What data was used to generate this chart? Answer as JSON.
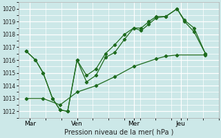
{
  "xlabel": "Pression niveau de la mer( hPa )",
  "bg_color": "#cce8e8",
  "grid_color": "#ffffff",
  "line_color": "#1e6b1e",
  "ylim": [
    1011.5,
    1020.5
  ],
  "yticks": [
    1012,
    1013,
    1014,
    1015,
    1016,
    1017,
    1018,
    1019,
    1020
  ],
  "day_labels": [
    "Mar",
    "Ven",
    "Mer",
    "Jeu"
  ],
  "day_positions": [
    0.5,
    3.0,
    6.0,
    8.5
  ],
  "xlim": [
    -0.1,
    10.5
  ],
  "line1_x": [
    0.3,
    0.8,
    1.2,
    1.7,
    2.1,
    2.5,
    3.0,
    3.5,
    4.0,
    4.5,
    5.0,
    5.5,
    6.0,
    6.4,
    6.8,
    7.2,
    7.7,
    8.3,
    8.7,
    9.2,
    9.8
  ],
  "line1_y": [
    1016.7,
    1016.0,
    1015.0,
    1013.0,
    1012.1,
    1012.0,
    1016.0,
    1014.3,
    1014.8,
    1016.2,
    1016.6,
    1017.6,
    1018.5,
    1018.3,
    1018.8,
    1019.3,
    1019.4,
    1020.0,
    1019.1,
    1018.5,
    1016.5
  ],
  "line2_x": [
    0.3,
    0.8,
    1.2,
    1.7,
    2.1,
    2.5,
    3.0,
    3.5,
    4.0,
    4.5,
    5.0,
    5.5,
    6.0,
    6.4,
    6.8,
    7.2,
    7.7,
    8.3,
    8.7,
    9.2,
    9.8
  ],
  "line2_y": [
    1016.7,
    1016.0,
    1015.0,
    1013.0,
    1012.1,
    1012.0,
    1016.0,
    1014.8,
    1015.3,
    1016.5,
    1017.2,
    1018.0,
    1018.5,
    1018.5,
    1019.0,
    1019.4,
    1019.4,
    1020.0,
    1019.0,
    1018.2,
    1016.5
  ],
  "line3_x": [
    0.3,
    1.2,
    2.1,
    3.0,
    4.0,
    5.0,
    6.0,
    7.2,
    7.7,
    8.3,
    9.8
  ],
  "line3_y": [
    1013.0,
    1013.0,
    1012.5,
    1013.5,
    1014.0,
    1014.7,
    1015.5,
    1016.1,
    1016.3,
    1016.4,
    1016.4
  ]
}
